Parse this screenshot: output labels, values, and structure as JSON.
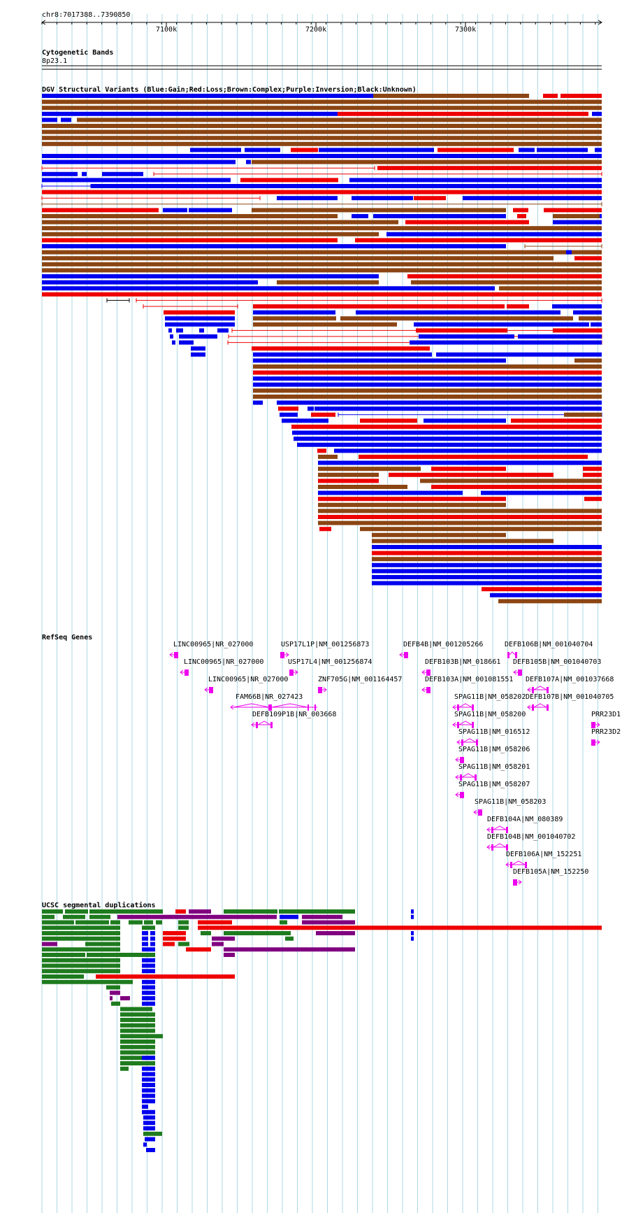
{
  "ruler": {
    "range_label": "chr8:7017388..7390850",
    "ticks": [
      "7100k",
      "7200k",
      "7300k"
    ]
  },
  "tracks": {
    "cyto": {
      "title": "Cytogenetic Bands",
      "band": "8p23.1"
    },
    "dgv": {
      "title": "DGV Structural Variants (Blue:Gain;Red:Loss;Brown:Complex;Purple:Inversion;Black:Unknown)"
    },
    "refseq": {
      "title": "RefSeq Genes"
    },
    "segdup": {
      "title": "UCSC segmental duplications"
    }
  },
  "colors": {
    "gain": "#0000ee",
    "loss": "#ee0000",
    "complex": "#8b4513",
    "inversion": "#800080",
    "unknown": "#000000",
    "gene": "#ee00ee",
    "segdup_green": "#1e7b1e",
    "segdup_blue": "#0000ee",
    "segdup_red": "#ee0000",
    "segdup_purple": "#800080",
    "grid": "#add8e6"
  },
  "genes": [
    {
      "label": "LINC00965|NR_027000"
    },
    {
      "label": "USP17L1P|NM_001256873"
    },
    {
      "label": "DEFB4B|NM_001205266"
    },
    {
      "label": "DEFB106B|NM_001040704"
    },
    {
      "label": "LINC00965|NR_027000"
    },
    {
      "label": "USP17L4|NM_001256874"
    },
    {
      "label": "DEFB103B|NM_018661"
    },
    {
      "label": "DEFB105B|NM_001040703"
    },
    {
      "label": "LINC00965|NR_027000"
    },
    {
      "label": "ZNF705G|NM_001164457"
    },
    {
      "label": "DEFB103A|NM_001081551"
    },
    {
      "label": "DEFB107A|NM_001037668"
    },
    {
      "label": "FAM66B|NR_027423"
    },
    {
      "label": "SPAG11B|NM_058202"
    },
    {
      "label": "DEFB107B|NM_001040705"
    },
    {
      "label": "DEFB109P1B|NR_003668"
    },
    {
      "label": "SPAG11B|NM_058200"
    },
    {
      "label": "PRR23D1"
    },
    {
      "label": "SPAG11B|NM_016512"
    },
    {
      "label": "PRR23D2"
    },
    {
      "label": "SPAG11B|NM_058206"
    },
    {
      "label": "SPAG11B|NM_058201"
    },
    {
      "label": "SPAG11B|NM_058207"
    },
    {
      "label": "SPAG11B|NM_058203"
    },
    {
      "label": "DEFB104A|NM_080389"
    },
    {
      "label": "DEFB104B|NM_001040702"
    },
    {
      "label": "DEFB106A|NM_152251"
    },
    {
      "label": "DEFB105A|NM_152250"
    }
  ]
}
